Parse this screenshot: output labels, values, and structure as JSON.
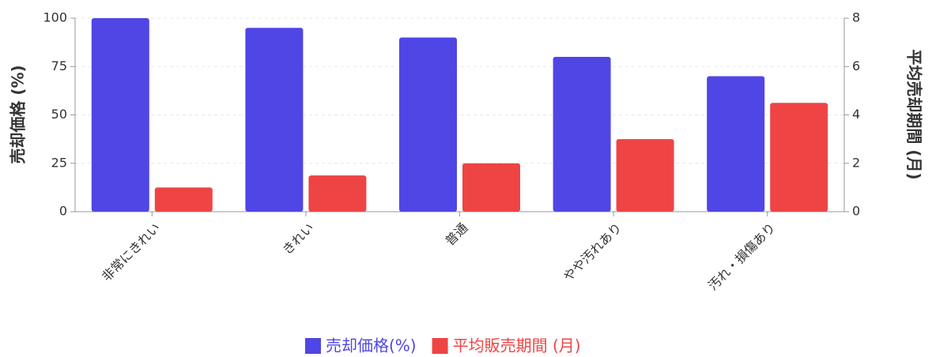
{
  "chart_data": {
    "type": "bar",
    "y_label": "売却価格 (%)",
    "y2_label": "平均売却期間 (月)",
    "categories": [
      "非常にきれい",
      "きれい",
      "普通",
      "やや汚れあり",
      "汚れ・損傷あり"
    ],
    "series": [
      {
        "name": "売却価格(%)",
        "color": "#4f46e5",
        "values": [
          100,
          95,
          90,
          80,
          70
        ]
      },
      {
        "name": "平均販売期間 (月)",
        "color": "#ef4444",
        "values": [
          1,
          1.5,
          2,
          3,
          4.5
        ],
        "axis": "y2"
      }
    ],
    "ylim": [
      0,
      100
    ],
    "yticks": [
      0,
      25,
      50,
      75,
      100
    ],
    "y2lim": [
      0,
      8
    ],
    "y2ticks": [
      0,
      2,
      4,
      6,
      8
    ],
    "grid": true,
    "legend": "bottom"
  }
}
